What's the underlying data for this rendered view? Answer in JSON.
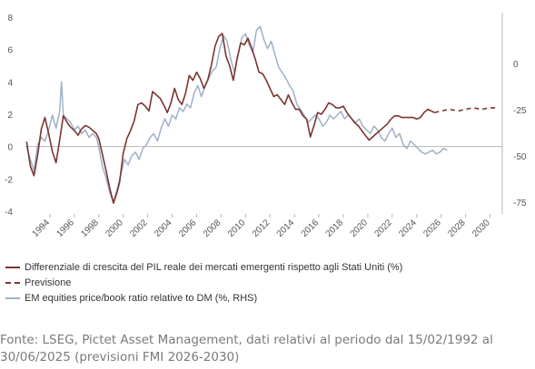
{
  "chart_data": {
    "type": "line",
    "xlim": [
      1992,
      2031
    ],
    "x_ticks": [
      "1994",
      "1996",
      "1998",
      "2000",
      "2002",
      "2004",
      "2006",
      "2008",
      "2010",
      "2012",
      "2014",
      "2016",
      "2018",
      "2020",
      "2022",
      "2024",
      "2026",
      "2028",
      "2030"
    ],
    "left_axis": {
      "ylim": [
        -4,
        8
      ],
      "ticks": [
        "8",
        "6",
        "4",
        "2",
        "0",
        "-2",
        "-4"
      ]
    },
    "right_axis": {
      "ylim": [
        -80,
        25
      ],
      "ticks": [
        "0",
        "-25",
        "-50",
        "-75"
      ]
    },
    "series": [
      {
        "name": "Differenziale di crescita del PIL reale dei mercati emergenti rispetto agli Stati Uniti (%)",
        "axis": "left",
        "color": "#7b3530",
        "style": "solid",
        "x": [
          1992.1,
          1992.4,
          1992.7,
          1993.0,
          1993.3,
          1993.6,
          1993.9,
          1994.2,
          1994.5,
          1994.8,
          1995.1,
          1995.4,
          1995.7,
          1996.0,
          1996.3,
          1996.6,
          1996.9,
          1997.2,
          1997.5,
          1997.8,
          1998.0,
          1998.3,
          1998.6,
          1998.9,
          1999.2,
          1999.5,
          1999.7,
          2000.0,
          2000.3,
          2000.6,
          2000.9,
          2001.2,
          2001.5,
          2001.8,
          2002.1,
          2002.4,
          2002.7,
          2003.0,
          2003.3,
          2003.6,
          2003.9,
          2004.2,
          2004.5,
          2004.8,
          2005.1,
          2005.4,
          2005.7,
          2006.0,
          2006.3,
          2006.6,
          2006.9,
          2007.2,
          2007.5,
          2007.8,
          2008.1,
          2008.4,
          2008.7,
          2009.0,
          2009.3,
          2009.6,
          2009.9,
          2010.2,
          2010.5,
          2010.8,
          2011.1,
          2011.4,
          2011.7,
          2012.0,
          2012.3,
          2012.6,
          2012.9,
          2013.2,
          2013.5,
          2013.8,
          2014.1,
          2014.4,
          2014.7,
          2015.0,
          2015.3,
          2015.6,
          2015.9,
          2016.2,
          2016.5,
          2016.8,
          2017.1,
          2017.4,
          2017.7,
          2018.0,
          2018.3,
          2018.6,
          2018.9,
          2019.2,
          2019.5,
          2019.8,
          2020.1,
          2020.4,
          2020.7,
          2021.0,
          2021.3,
          2021.6,
          2021.9,
          2022.2,
          2022.5,
          2022.8,
          2023.1,
          2023.4,
          2023.7,
          2024.0,
          2024.3,
          2024.6,
          2024.9,
          2025.2,
          2025.45
        ],
        "y": [
          0.3,
          -1.2,
          -1.8,
          -0.5,
          1.1,
          1.8,
          0.8,
          -0.3,
          -1.0,
          0.4,
          1.9,
          1.5,
          1.2,
          1.0,
          0.7,
          1.1,
          1.3,
          1.2,
          1.0,
          0.8,
          0.5,
          -0.5,
          -1.5,
          -2.6,
          -3.5,
          -2.8,
          -2.2,
          -0.4,
          0.5,
          1.0,
          1.6,
          2.6,
          2.7,
          2.5,
          2.2,
          3.4,
          3.2,
          3.0,
          2.6,
          2.1,
          2.7,
          3.6,
          2.9,
          2.6,
          3.3,
          4.4,
          4.1,
          4.6,
          4.2,
          3.6,
          4.1,
          5.0,
          6.2,
          6.8,
          7.0,
          5.6,
          5.0,
          4.1,
          5.4,
          6.4,
          6.3,
          6.7,
          6.1,
          5.4,
          4.6,
          4.5,
          4.1,
          3.6,
          3.1,
          3.2,
          2.9,
          2.6,
          3.2,
          2.7,
          2.3,
          2.3,
          1.9,
          1.7,
          0.6,
          1.3,
          2.1,
          2.0,
          2.3,
          2.7,
          2.6,
          2.4,
          2.4,
          2.5,
          2.1,
          1.8,
          1.5,
          1.3,
          1.0,
          0.7,
          0.4,
          0.6,
          0.8,
          1.0,
          1.2,
          1.4,
          1.7,
          1.9,
          1.9,
          1.8,
          1.8,
          1.8,
          1.8,
          1.7,
          1.8,
          2.1,
          2.3,
          2.2,
          2.1
        ]
      },
      {
        "name": "Previsione",
        "axis": "left",
        "color": "#7b3530",
        "style": "dashed",
        "x": [
          2025.45,
          2026.0,
          2026.7,
          2027.4,
          2028.0,
          2028.6,
          2029.3,
          2030.0,
          2030.5
        ],
        "y": [
          2.1,
          2.2,
          2.3,
          2.2,
          2.3,
          2.4,
          2.3,
          2.4,
          2.4
        ]
      },
      {
        "name": "EM equities price/book ratio relative to DM (%, RHS)",
        "axis": "right",
        "color": "#9fb1c7",
        "style": "solid",
        "x": [
          1992.1,
          1992.4,
          1992.7,
          1993.0,
          1993.3,
          1993.6,
          1993.9,
          1994.2,
          1994.5,
          1994.8,
          1994.95,
          1995.1,
          1995.4,
          1995.7,
          1996.0,
          1996.3,
          1996.6,
          1996.9,
          1997.2,
          1997.5,
          1997.8,
          1998.0,
          1998.3,
          1998.6,
          1998.9,
          1999.2,
          1999.5,
          1999.8,
          2000.1,
          2000.4,
          2000.7,
          2001.0,
          2001.3,
          2001.6,
          2001.9,
          2002.2,
          2002.5,
          2002.8,
          2003.1,
          2003.4,
          2003.7,
          2004.0,
          2004.3,
          2004.6,
          2004.9,
          2005.2,
          2005.5,
          2005.8,
          2006.1,
          2006.4,
          2006.7,
          2007.0,
          2007.3,
          2007.6,
          2007.9,
          2008.2,
          2008.5,
          2008.8,
          2009.1,
          2009.4,
          2009.7,
          2010.0,
          2010.3,
          2010.6,
          2010.9,
          2011.2,
          2011.5,
          2011.8,
          2012.1,
          2012.4,
          2012.7,
          2013.0,
          2013.3,
          2013.6,
          2013.9,
          2014.2,
          2014.5,
          2014.8,
          2015.1,
          2015.4,
          2015.7,
          2016.0,
          2016.3,
          2016.6,
          2016.9,
          2017.2,
          2017.5,
          2017.8,
          2018.1,
          2018.4,
          2018.7,
          2019.0,
          2019.3,
          2019.6,
          2019.9,
          2020.2,
          2020.5,
          2020.8,
          2021.1,
          2021.4,
          2021.7,
          2022.0,
          2022.3,
          2022.6,
          2022.9,
          2023.2,
          2023.5,
          2023.8,
          2024.1,
          2024.4,
          2024.7,
          2025.0,
          2025.3,
          2025.6,
          2025.9,
          2026.2,
          2026.5
        ],
        "y": [
          -45,
          -52,
          -58,
          -44,
          -40,
          -42,
          -36,
          -28,
          -35,
          -26,
          -10,
          -28,
          -30,
          -32,
          -36,
          -34,
          -38,
          -36,
          -40,
          -38,
          -40,
          -45,
          -56,
          -62,
          -70,
          -75,
          -68,
          -60,
          -52,
          -55,
          -50,
          -48,
          -52,
          -46,
          -44,
          -40,
          -38,
          -42,
          -35,
          -30,
          -34,
          -28,
          -30,
          -24,
          -26,
          -22,
          -24,
          -16,
          -12,
          -18,
          -12,
          -8,
          -4,
          -2,
          8,
          15,
          12,
          2,
          -5,
          5,
          14,
          16,
          10,
          6,
          18,
          20,
          13,
          8,
          12,
          5,
          -2,
          -5,
          -8,
          -12,
          -15,
          -22,
          -25,
          -28,
          -32,
          -30,
          -28,
          -30,
          -34,
          -32,
          -28,
          -30,
          -28,
          -26,
          -30,
          -28,
          -30,
          -32,
          -30,
          -34,
          -36,
          -38,
          -34,
          -36,
          -40,
          -42,
          -38,
          -35,
          -40,
          -38,
          -44,
          -46,
          -42,
          -44,
          -46,
          -48,
          -49,
          -48,
          -47,
          -49,
          -48,
          -46,
          -47
        ]
      }
    ],
    "grid": false,
    "legend_position": "bottom"
  },
  "legend": [
    "Differenziale di crescita del PIL reale dei mercati emergenti rispetto agli Stati Uniti (%)",
    "Previsione",
    "EM equities price/book ratio relative to DM (%, RHS)"
  ],
  "source_text": "Fonte: LSEG, Pictet Asset Management, dati relativi al periodo dal 15/02/1992 al 30/06/2025 (previsioni FMI 2026-2030)"
}
